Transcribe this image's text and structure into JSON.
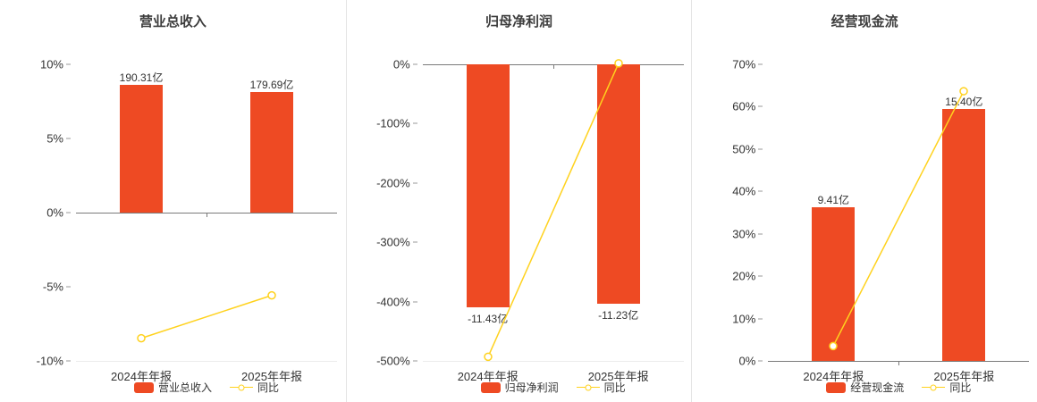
{
  "colors": {
    "bar": "#ee4a23",
    "line": "#ffd21e"
  },
  "chart_data": [
    {
      "type": "bar",
      "title": "营业总收入",
      "categories": [
        "2024年年报",
        "2025年年报"
      ],
      "ylim": [
        -10,
        10
      ],
      "yticks": [
        10,
        5,
        0,
        -5,
        -10
      ],
      "legend_position": "bottom",
      "grid": false,
      "series": [
        {
          "name": "营业总收入",
          "type": "bar",
          "labels": [
            "190.31亿",
            "179.69亿"
          ],
          "values_pct": [
            8.6,
            8.12
          ]
        },
        {
          "name": "同比",
          "type": "line",
          "values_pct": [
            -8.47,
            -5.58
          ]
        }
      ]
    },
    {
      "type": "bar",
      "title": "归母净利润",
      "categories": [
        "2024年年报",
        "2025年年报"
      ],
      "ylim": [
        -500,
        0
      ],
      "yticks": [
        0,
        -100,
        -200,
        -300,
        -400,
        -500
      ],
      "legend_position": "bottom",
      "grid": false,
      "series": [
        {
          "name": "归母净利润",
          "type": "bar",
          "labels": [
            "-11.43亿",
            "-11.23亿"
          ],
          "values_pct": [
            -410,
            -403
          ]
        },
        {
          "name": "同比",
          "type": "line",
          "values_pct": [
            -493,
            1.75
          ]
        }
      ]
    },
    {
      "type": "bar",
      "title": "经营现金流",
      "categories": [
        "2024年年报",
        "2025年年报"
      ],
      "ylim": [
        0,
        70
      ],
      "yticks": [
        70,
        60,
        50,
        40,
        30,
        20,
        10,
        0
      ],
      "legend_position": "bottom",
      "grid": false,
      "series": [
        {
          "name": "经营现金流",
          "type": "bar",
          "labels": [
            "9.41亿",
            "15.40亿"
          ],
          "values_pct": [
            36.3,
            59.4
          ]
        },
        {
          "name": "同比",
          "type": "line",
          "values_pct": [
            3.5,
            63.66
          ]
        }
      ]
    }
  ]
}
